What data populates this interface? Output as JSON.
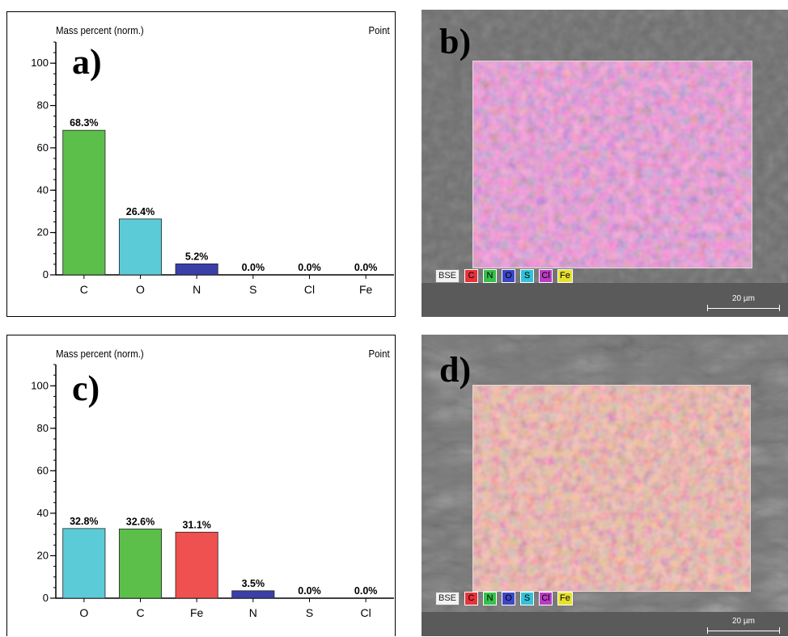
{
  "panels": {
    "a": {
      "label": "a)",
      "header_left": "Mass percent (norm.)",
      "header_right": "Point"
    },
    "b": {
      "label": "b)",
      "scale_bar": "20 µm"
    },
    "c": {
      "label": "c)",
      "header_left": "Mass percent (norm.)",
      "header_right": "Point"
    },
    "d": {
      "label": "d)",
      "scale_bar": "20 µm"
    }
  },
  "legend": [
    {
      "text": "BSE",
      "color": "#f2f2f2"
    },
    {
      "text": "C",
      "color": "#e8323a"
    },
    {
      "text": "N",
      "color": "#35c04a"
    },
    {
      "text": "O",
      "color": "#3c46c8"
    },
    {
      "text": "S",
      "color": "#31c2d8"
    },
    {
      "text": "Cl",
      "color": "#b93cc4"
    },
    {
      "text": "Fe",
      "color": "#e8e030"
    }
  ],
  "chart_data": [
    {
      "type": "bar",
      "panel": "a)",
      "categories": [
        "C",
        "O",
        "N",
        "S",
        "Cl",
        "Fe"
      ],
      "values": [
        68.3,
        26.4,
        5.2,
        0.0,
        0.0,
        0.0
      ],
      "value_labels": [
        "68.3%",
        "26.4%",
        "5.2%",
        "0.0%",
        "0.0%",
        "0.0%"
      ],
      "colors": [
        "#5cbf4a",
        "#5ccbd8",
        "#3b3fa8",
        "#3b3fa8",
        "#3b3fa8",
        "#3b3fa8"
      ],
      "ylabel": "Mass percent (norm.)",
      "ylim": [
        0,
        110
      ],
      "yticks": [
        0,
        20,
        40,
        60,
        80,
        100
      ],
      "grid": false
    },
    {
      "type": "bar",
      "panel": "c)",
      "categories": [
        "O",
        "C",
        "Fe",
        "N",
        "S",
        "Cl"
      ],
      "values": [
        32.8,
        32.6,
        31.1,
        3.5,
        0.0,
        0.0
      ],
      "value_labels": [
        "32.8%",
        "32.6%",
        "31.1%",
        "3.5%",
        "0.0%",
        "0.0%"
      ],
      "colors": [
        "#5ccbd8",
        "#5cbf4a",
        "#ef5050",
        "#3b3fa8",
        "#3b3fa8",
        "#3b3fa8"
      ],
      "ylabel": "Mass percent (norm.)",
      "ylim": [
        0,
        110
      ],
      "yticks": [
        0,
        20,
        40,
        60,
        80,
        100
      ],
      "grid": false
    }
  ]
}
